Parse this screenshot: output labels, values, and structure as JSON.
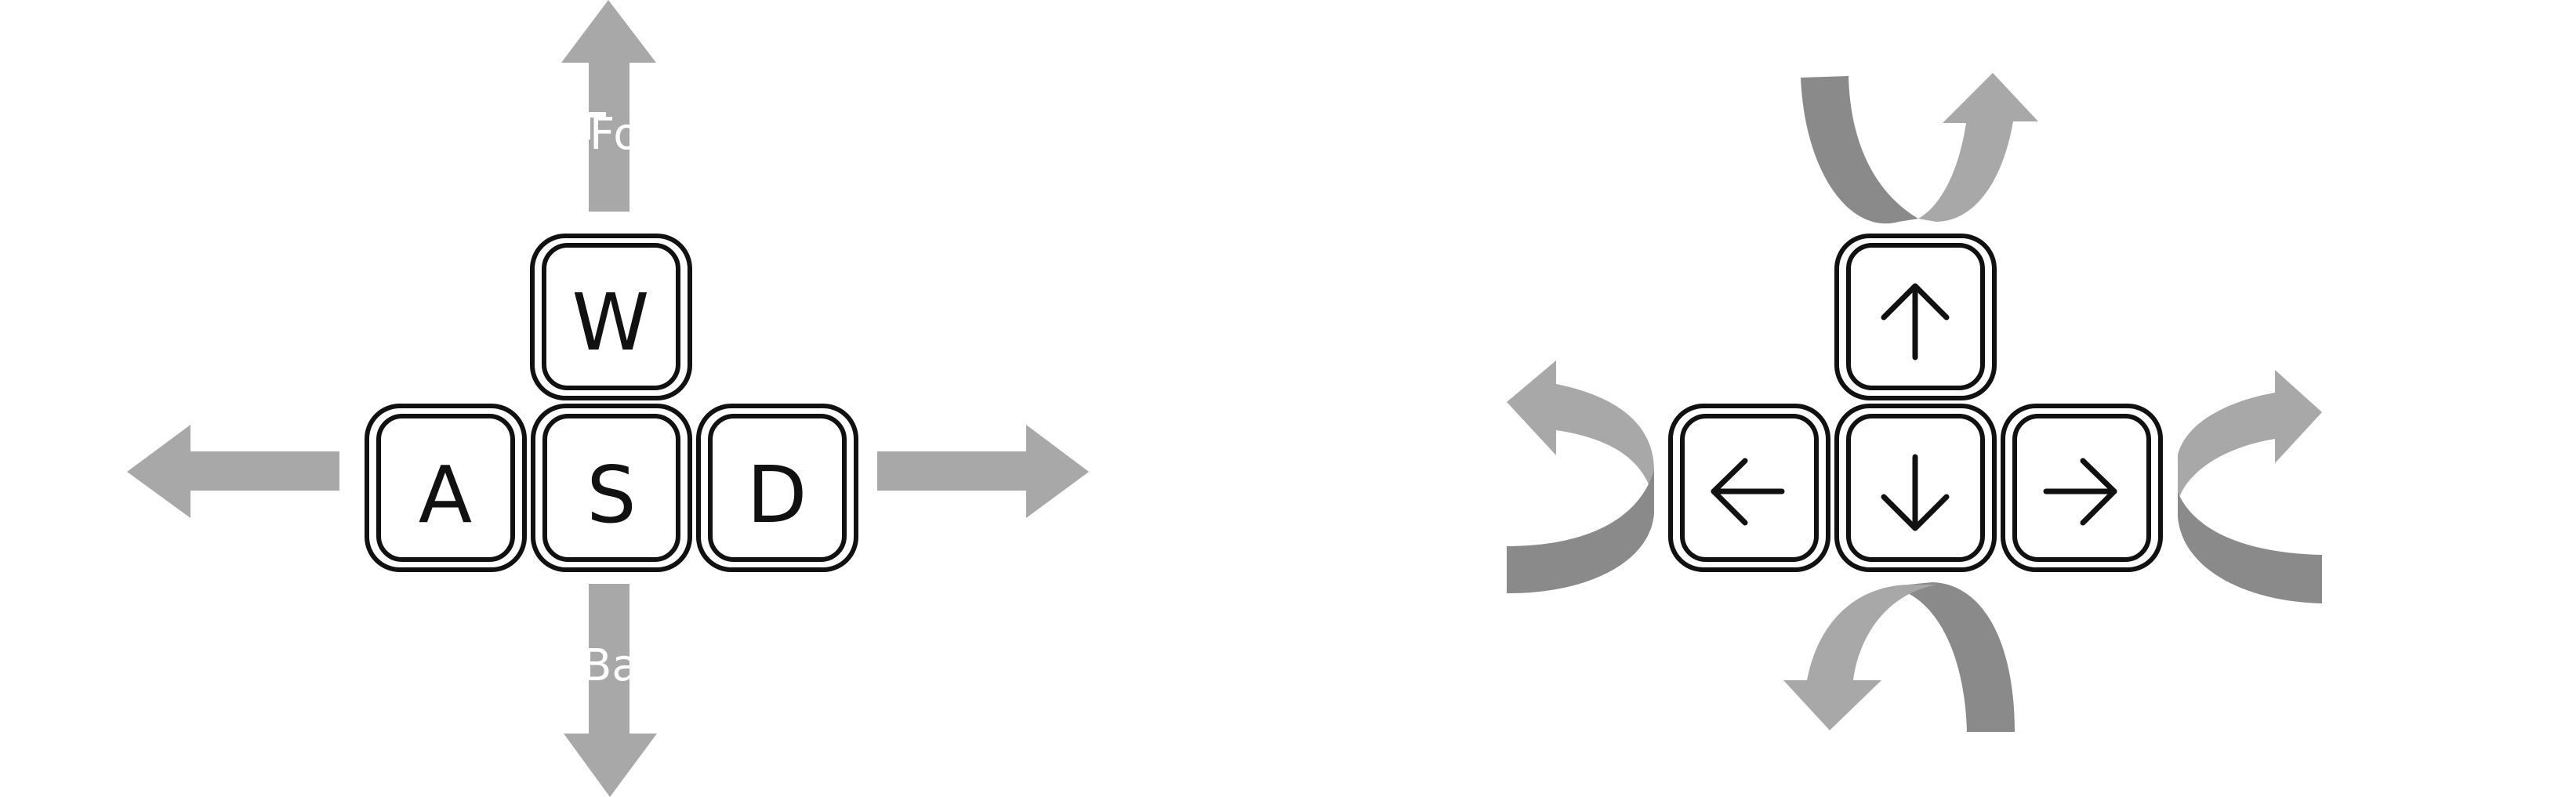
{
  "colors": {
    "background": "#ffffff",
    "arrow_light": "#a8a8a8",
    "arrow_dark": "#8a8a8a",
    "key_stroke": "#111111",
    "label_white": "#ffffff"
  },
  "left_group": {
    "keys": {
      "w": "W",
      "a": "A",
      "s": "S",
      "d": "D"
    },
    "arrow_labels": {
      "forward": "Fo",
      "backward": "Ba"
    }
  },
  "right_group": {
    "keys": {
      "up": "arrow-up-icon",
      "left": "arrow-left-icon",
      "down": "arrow-down-icon",
      "right": "arrow-right-icon"
    }
  }
}
